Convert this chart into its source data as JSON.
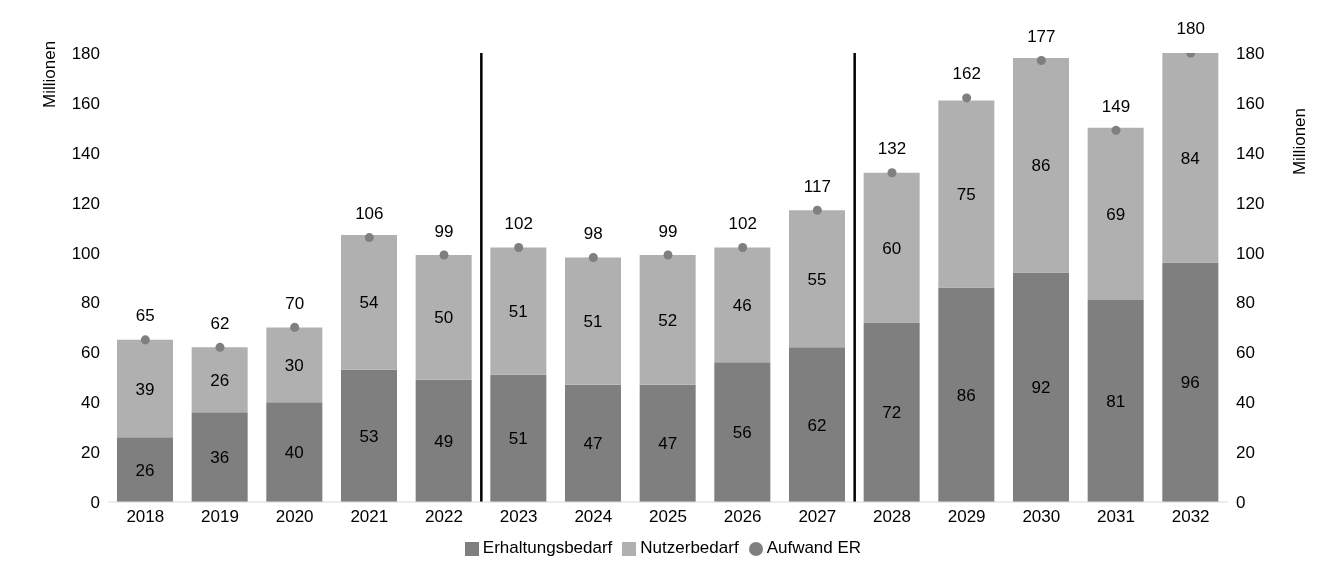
{
  "chart_data": {
    "type": "bar",
    "stacked": true,
    "x": [
      2018,
      2019,
      2020,
      2021,
      2022,
      2023,
      2024,
      2025,
      2026,
      2027,
      2028,
      2029,
      2030,
      2031,
      2032
    ],
    "xlim": [
      2017.5,
      2032.5
    ],
    "xticks": [
      2018,
      2019,
      2020,
      2021,
      2022,
      2023,
      2024,
      2025,
      2026,
      2027,
      2028,
      2029,
      2030,
      2031,
      2032
    ],
    "series": [
      {
        "name": "Erhaltungsbedarf",
        "color": "#7f7f7f",
        "values": [
          26,
          36,
          40,
          53,
          49,
          51,
          47,
          47,
          56,
          62,
          72,
          86,
          92,
          81,
          96
        ]
      },
      {
        "name": "Nutzerbedarf",
        "color": "#b0b0b0",
        "values": [
          39,
          26,
          30,
          54,
          50,
          51,
          51,
          52,
          46,
          55,
          60,
          75,
          86,
          69,
          84
        ]
      },
      {
        "name": "Aufwand ER",
        "type": "scatter",
        "color": "#7f7f7f",
        "values": [
          65,
          62,
          70,
          106,
          99,
          102,
          98,
          99,
          102,
          117,
          132,
          162,
          177,
          149,
          180
        ]
      }
    ],
    "ylim": [
      0,
      180
    ],
    "yticks": [
      0,
      20,
      40,
      60,
      80,
      100,
      120,
      140,
      160,
      180
    ],
    "ylabel": "Millionen",
    "y2lim": [
      0,
      180
    ],
    "y2ticks": [
      0,
      20,
      40,
      60,
      80,
      100,
      120,
      140,
      160,
      180
    ],
    "y2label": "Millionen",
    "ref_lines": [
      {
        "axis": "x",
        "value": 2022.5,
        "color": "#000000"
      },
      {
        "axis": "x",
        "value": 2027.5,
        "color": "#000000"
      }
    ],
    "data_labels": true,
    "legend": "bottom",
    "marker": "circle",
    "grid": false
  }
}
